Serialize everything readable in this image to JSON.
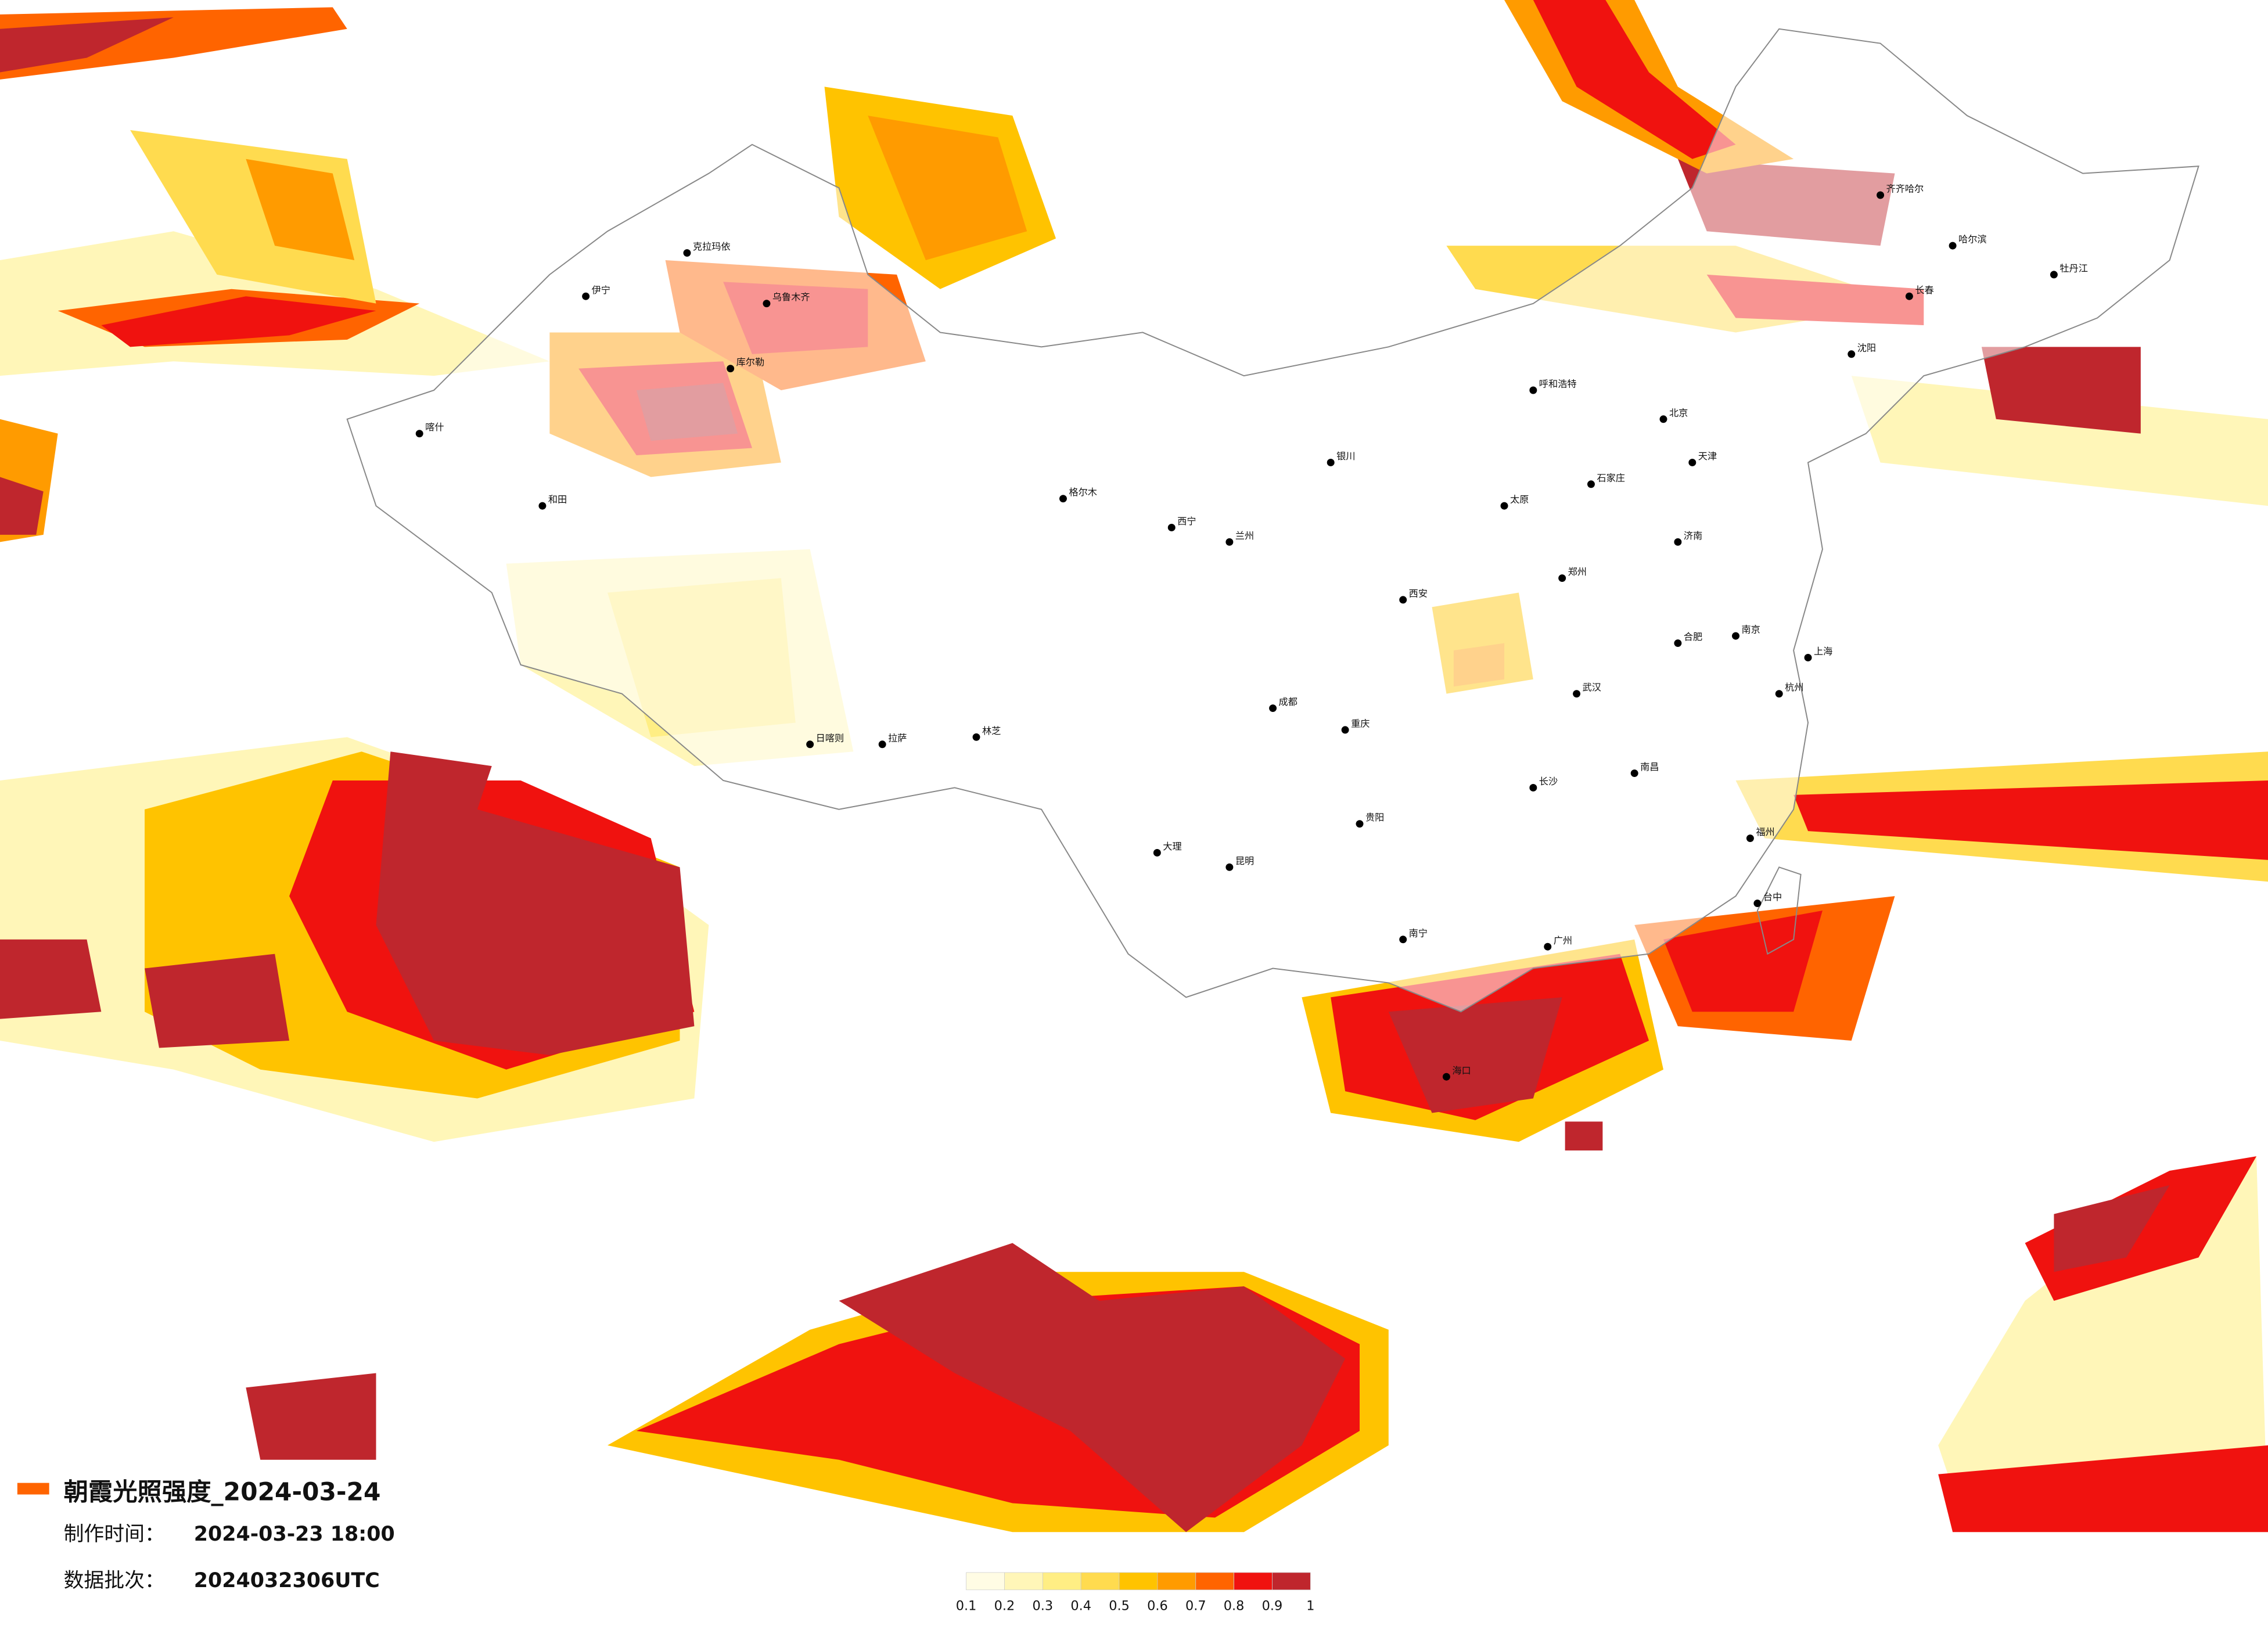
{
  "title": "朝霞光照强度_2024-03-24",
  "made_time_label": "制作时间：",
  "made_time": "2024-03-23 18:00",
  "batch_label": "数据批次：",
  "batch": "2024032306UTC",
  "legend": {
    "ticks": [
      0.1,
      0.2,
      0.3,
      0.4,
      0.5,
      0.6,
      0.7,
      0.8,
      0.9,
      1
    ],
    "colors": [
      "#fffce4",
      "#fff6b8",
      "#ffee84",
      "#ffdb4f",
      "#ffc300",
      "#ff9b00",
      "#ff6400",
      "#f0120f",
      "#bf262d"
    ]
  },
  "cities": [
    "北京",
    "天津",
    "石家庄",
    "太原",
    "呼和浩特",
    "沈阳",
    "长春",
    "哈尔滨",
    "济南",
    "郑州",
    "武汉",
    "长沙",
    "南昌",
    "合肥",
    "南京",
    "上海",
    "杭州",
    "福州",
    "广州",
    "南宁",
    "海口",
    "贵阳",
    "昆明",
    "成都",
    "重庆",
    "西安",
    "兰州",
    "西宁",
    "银川",
    "拉萨",
    "乌鲁木齐",
    "喀什",
    "和田",
    "克拉玛依",
    "伊宁",
    "库尔勒",
    "格尔木",
    "日喀则",
    "林芝",
    "大理",
    "齐齐哈尔",
    "牡丹江",
    "台中"
  ]
}
